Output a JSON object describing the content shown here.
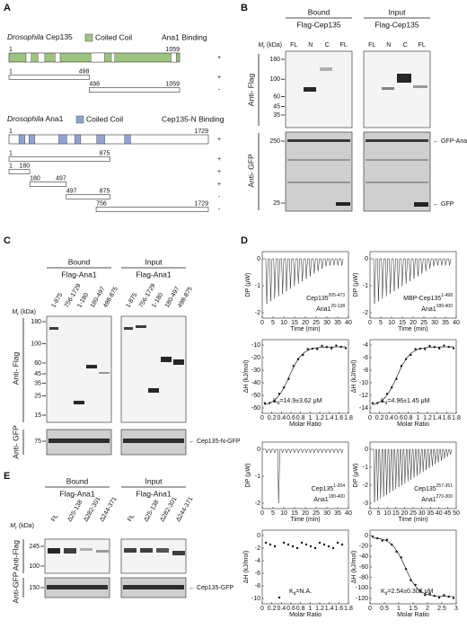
{
  "panelA": {
    "label": "A",
    "cep135": {
      "species": "Drosophila",
      "protein": " Cep135",
      "legend": "Coiled Coil",
      "binding": "Ana1 Binding",
      "constructs": [
        {
          "start": "1",
          "end": "1059",
          "result": "+"
        },
        {
          "start": "1",
          "end": "498",
          "result": "+"
        },
        {
          "start": "498",
          "end": "1059",
          "result": "-"
        }
      ]
    },
    "ana1": {
      "species": "Drosophila",
      "protein": " Ana1",
      "legend": "Coiled Coil",
      "binding": "Cep135-N Binding",
      "constructs": [
        {
          "start": "1",
          "end": "1729",
          "result": "+"
        },
        {
          "start": "1",
          "end": "875",
          "result": "+"
        },
        {
          "start": "1",
          "end": "180",
          "result": "+"
        },
        {
          "start": "180",
          "end": "497",
          "result": "+"
        },
        {
          "start": "497",
          "end": "875",
          "result": "-"
        },
        {
          "start": "756",
          "end": "1729",
          "result": "-"
        }
      ]
    }
  },
  "panelB": {
    "label": "B",
    "bound": "Bound",
    "input": "Input",
    "bound_construct": "Flag-Cep135",
    "input_construct": "Flag-Cep135",
    "mr": {
      "symbol": "M",
      "sub": "r",
      "unit": " (kDa)"
    },
    "bound_lanes": [
      "FL",
      "N",
      "C",
      "FL"
    ],
    "input_lanes": [
      "FL",
      "N",
      "C",
      "FL"
    ],
    "flag_label": "Anti- Flag",
    "gfp_label": "Anti- GFP",
    "flag_markers": [
      "180",
      "100",
      "60",
      "45",
      "35"
    ],
    "gfp_markers": [
      "250",
      "25"
    ],
    "gfp_ana1": "← GFP-Ana1",
    "gfp": "← GFP"
  },
  "panelC": {
    "label": "C",
    "bound": "Bound",
    "input": "Input",
    "bound_construct": "Flag-Ana1",
    "input_construct": "Flag-Ana1",
    "mr": {
      "symbol": "M",
      "sub": "r",
      "unit": " (kDa)"
    },
    "bound_lanes": [
      "1-875",
      "756-1729",
      "1-180",
      "180-497",
      "498-875"
    ],
    "input_lanes": [
      "1-875",
      "756-1729",
      "1-180",
      "180-497",
      "498-875"
    ],
    "flag_label": "Anti- Flag",
    "gfp_label": "Anti- GFP",
    "flag_markers": [
      "180",
      "100",
      "60",
      "45",
      "35",
      "25",
      "15"
    ],
    "gfp_markers": [
      "75"
    ],
    "arrow": "← Cep135-N-GFP"
  },
  "panelD": {
    "label": "D",
    "itc": [
      {
        "dp_label": "DP (μW)",
        "time_label": "Time (min)",
        "dh_label": "ΔH (kJ/mol)",
        "ratio_label": "Molar Ratio",
        "protein1": {
          "name": "Cep135",
          "range": "205-473"
        },
        "protein2": {
          "name": "Ana1",
          "range": "25-138"
        },
        "kd": {
          "symbol": "K",
          "sub": "d",
          "value": "=14.9±3.62 μM"
        },
        "dp_ticks": [
          "0",
          "-1",
          "-2"
        ],
        "time_ticks": [
          "0",
          "5",
          "10",
          "15",
          "20",
          "25",
          "30",
          "35",
          "40"
        ],
        "dh_ticks": [
          "-10",
          "-20",
          "-30",
          "-40",
          "-50",
          "-60"
        ],
        "ratio_ticks": [
          "0",
          "0.2",
          "0.4",
          "0.6",
          "0.8",
          "1",
          "1.2",
          "1.4",
          "1.6",
          "1.8"
        ]
      },
      {
        "dp_label": "DP (μW)",
        "time_label": "Time (min)",
        "dh_label": "ΔH (kJ/mol)",
        "ratio_label": "Molar Ratio",
        "protein1": {
          "name": "MBP-Cep135",
          "range": "1-498"
        },
        "protein2": {
          "name": "Ana1",
          "range": "180-400"
        },
        "kd": {
          "symbol": "K",
          "sub": "d",
          "value": "=4.96±1.45 μM"
        },
        "dp_ticks": [
          "0",
          "-1",
          "-2"
        ],
        "time_ticks": [
          "0",
          "5",
          "10",
          "15",
          "20",
          "25",
          "30",
          "35",
          "40"
        ],
        "dh_ticks": [
          "-4",
          "-6",
          "-8",
          "-10",
          "-12",
          "-14"
        ],
        "ratio_ticks": [
          "0",
          "0.2",
          "0.4",
          "0.6",
          "0.8",
          "1",
          "1.2",
          "1.4",
          "1.6",
          "1.8"
        ]
      },
      {
        "dp_label": "DP (μW)",
        "time_label": "Time (min)",
        "dh_label": "ΔH (kJ/mol)",
        "ratio_label": "Molar Ratio",
        "protein1": {
          "name": "Cep135",
          "range": "1-204"
        },
        "protein2": {
          "name": "Ana1",
          "range": "180-400"
        },
        "kd": {
          "symbol": "K",
          "sub": "d",
          "value": "=N.A."
        },
        "dp_ticks": [
          "0",
          "-1",
          "-2"
        ],
        "time_ticks": [
          "0",
          "5",
          "10",
          "15",
          "20",
          "25",
          "30",
          "35",
          "40"
        ],
        "dh_ticks": [
          "0",
          "-2",
          "-4",
          "-6",
          "-8",
          "-10"
        ],
        "ratio_ticks": [
          "0",
          "0.2",
          "0.4",
          "0.6",
          "0.8",
          "1",
          "1.2",
          "1.4",
          "1.6",
          "1.8"
        ]
      },
      {
        "dp_label": "DP (μW)",
        "time_label": "Time (min)",
        "dh_label": "ΔH (kJ/mol)",
        "ratio_label": "Molar Ratio",
        "protein1": {
          "name": "Cep135",
          "range": "257-351"
        },
        "protein2": {
          "name": "Ana1",
          "range": "270-300"
        },
        "kd": {
          "symbol": "K",
          "sub": "d",
          "value": "=2.54±0.302 μM"
        },
        "dp_ticks": [
          "0",
          "-1",
          "-2",
          "-3"
        ],
        "time_ticks": [
          "0",
          "5",
          "10",
          "15",
          "20",
          "25",
          "30",
          "35",
          "40",
          "45",
          "50"
        ],
        "dh_ticks": [
          "0",
          "-20",
          "-40",
          "-60",
          "-80",
          "-100",
          "-120"
        ],
        "ratio_ticks": [
          "0",
          "0.5",
          "1",
          "1.5",
          "2",
          "2.5",
          "3"
        ]
      }
    ]
  },
  "panelE": {
    "label": "E",
    "bound": "Bound",
    "input": "Input",
    "bound_construct": "Flag-Ana1",
    "input_construct": "Flag-Ana1",
    "mr": {
      "symbol": "M",
      "sub": "r",
      "unit": " (kDa)"
    },
    "bound_lanes": [
      "FL",
      "Δ25-138",
      "Δ282-301",
      "Δ244-371"
    ],
    "input_lanes": [
      "FL",
      "Δ25-138",
      "Δ282-301",
      "Δ244-371"
    ],
    "flag_label": "Anti-Flag",
    "gfp_label": "Anti-GFP",
    "flag_markers": [
      "245",
      "100"
    ],
    "gfp_markers": [
      "150"
    ],
    "arrow": "← Cep135-GFP"
  }
}
